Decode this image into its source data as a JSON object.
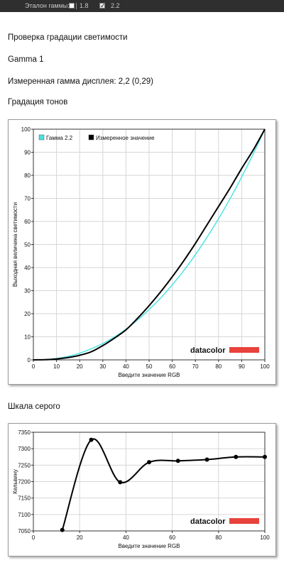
{
  "toolbar": {
    "reference_label": "Эталон гаммы:",
    "option_18": "1.8",
    "option_22": "2.2",
    "option_18_checked": false,
    "option_22_checked": true
  },
  "texts": {
    "section_title": "Проверка градации светимости",
    "gamma_name": "Gamma 1",
    "measured_gamma": "Измеренная гамма дисплея: 2,2 (0,29)",
    "tone_title": "Градация тонов",
    "gray_title": "Шкала серого"
  },
  "logo": {
    "text": "datacolor",
    "bar_color": "#e8423b"
  },
  "chart_data": [
    {
      "type": "line",
      "title": "",
      "xlabel": "Введите значение RGB",
      "ylabel": "Выходная величина светимости",
      "xlim": [
        0,
        100
      ],
      "ylim": [
        0,
        100
      ],
      "xticks": [
        0,
        10,
        20,
        30,
        40,
        50,
        60,
        70,
        80,
        90,
        100
      ],
      "yticks": [
        0,
        10,
        20,
        30,
        40,
        50,
        60,
        70,
        80,
        90,
        100
      ],
      "grid": true,
      "legend_position": "top-left",
      "series": [
        {
          "name": "Гамма 2.2",
          "color": "#44e3e3",
          "x": [
            0,
            5,
            10,
            15,
            20,
            25,
            30,
            35,
            40,
            45,
            50,
            55,
            60,
            65,
            70,
            75,
            80,
            85,
            90,
            95,
            100
          ],
          "values": [
            0,
            0.1,
            0.6,
            1.5,
            2.9,
            4.8,
            7.1,
            9.9,
            13.3,
            17.3,
            21.8,
            26.8,
            32.5,
            38.7,
            45.6,
            53.1,
            61.2,
            69.9,
            79.3,
            89.3,
            100
          ]
        },
        {
          "name": "Измеренное значение",
          "color": "#000000",
          "x": [
            0,
            5,
            10,
            15,
            20,
            25,
            30,
            35,
            40,
            45,
            50,
            55,
            60,
            65,
            70,
            75,
            80,
            85,
            90,
            95,
            100
          ],
          "values": [
            0,
            0.1,
            0.4,
            1.0,
            2.0,
            3.5,
            6.2,
            9.4,
            13.0,
            18.0,
            23.5,
            29.5,
            36.0,
            43.0,
            50.5,
            58.5,
            66.5,
            74.5,
            83.0,
            91.0,
            100
          ]
        }
      ]
    },
    {
      "type": "line",
      "title": "",
      "xlabel": "Введите значение RGB",
      "ylabel": "Кельвину",
      "xlim": [
        0,
        100
      ],
      "ylim": [
        7050,
        7350
      ],
      "xticks": [
        0,
        20,
        40,
        60,
        80,
        100
      ],
      "yticks": [
        7050,
        7100,
        7150,
        7200,
        7250,
        7300,
        7350
      ],
      "grid": true,
      "series": [
        {
          "color": "#000000",
          "x": [
            12.5,
            25,
            37.5,
            50,
            62.5,
            75,
            87.5,
            100
          ],
          "values": [
            7053,
            7327,
            7198,
            7259,
            7263,
            7267,
            7275,
            7275
          ]
        }
      ]
    }
  ]
}
